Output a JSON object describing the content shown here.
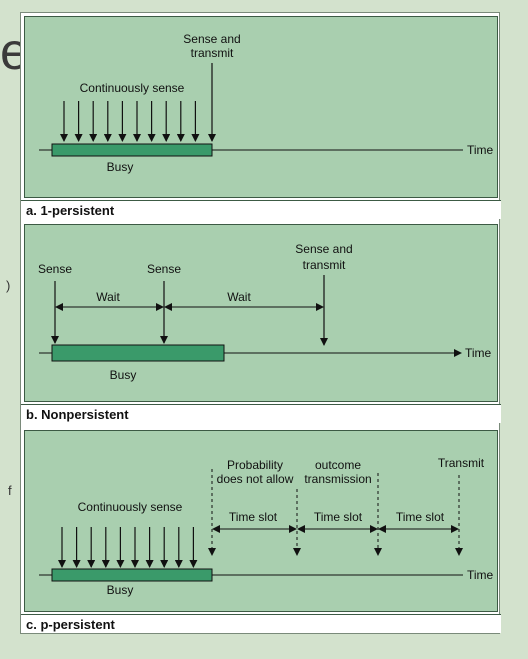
{
  "background": {
    "title_fragment": "es",
    "fragment_1": ")",
    "fragment_2": "f"
  },
  "panel_a": {
    "caption": "a. 1-persistent",
    "label_sense_transmit_1": "Sense and",
    "label_sense_transmit_2": "transmit",
    "label_continuously": "Continuously sense",
    "label_busy": "Busy",
    "label_time": "Time"
  },
  "panel_b": {
    "caption": "b. Nonpersistent",
    "label_sense_1": "Sense",
    "label_sense_2": "Sense",
    "label_sense_transmit_1": "Sense and",
    "label_sense_transmit_2": "transmit",
    "label_wait_1": "Wait",
    "label_wait_2": "Wait",
    "label_busy": "Busy",
    "label_time": "Time"
  },
  "panel_c": {
    "caption": "c. p-persistent",
    "label_continuously": "Continuously sense",
    "label_probability_1": "Probability",
    "label_probability_2": "does not allow",
    "label_outcome_1": "outcome",
    "label_outcome_2": "transmission",
    "label_transmit": "Transmit",
    "label_time_slot_1": "Time slot",
    "label_time_slot_2": "Time slot",
    "label_time_slot_3": "Time slot",
    "label_busy": "Busy",
    "label_time": "Time"
  },
  "colors": {
    "panel_bg": "#a9cfaf",
    "busy_bar": "#3a9a6a",
    "line": "#111111"
  }
}
